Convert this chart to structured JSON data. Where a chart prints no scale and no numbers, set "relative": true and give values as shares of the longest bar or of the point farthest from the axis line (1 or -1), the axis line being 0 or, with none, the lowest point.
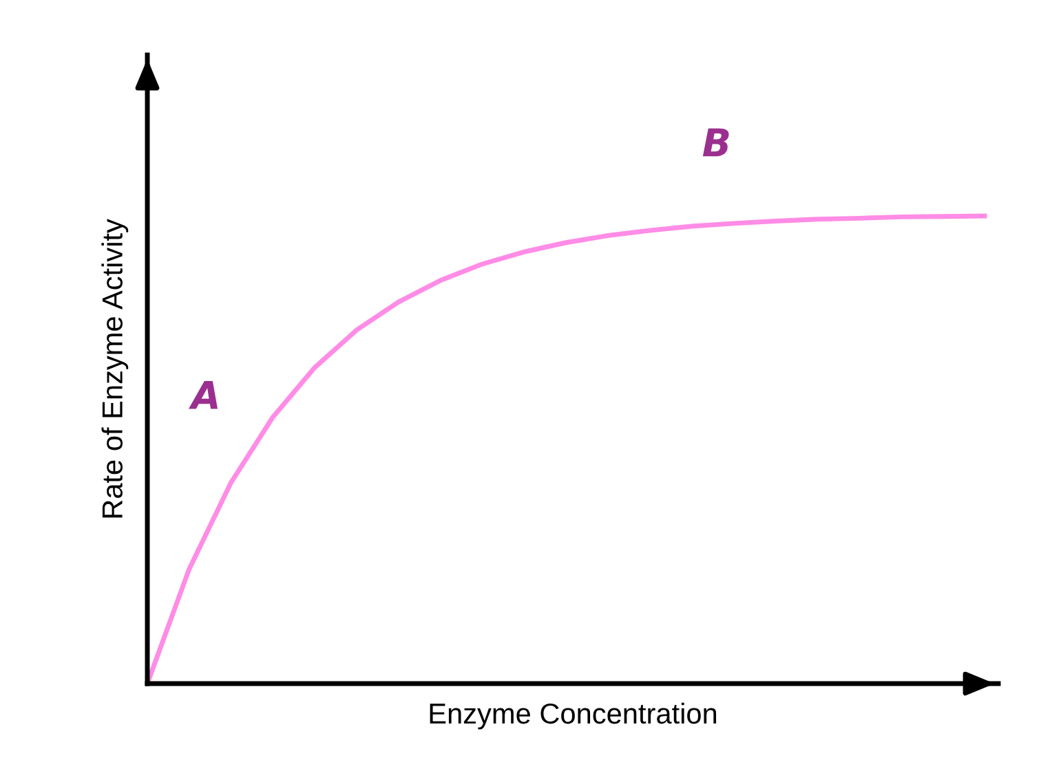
{
  "chart_data": {
    "type": "line",
    "relative": true,
    "xlabel": "Enzyme Concentration",
    "ylabel": "Rate of Enzyme Activity",
    "categories": [
      null,
      null,
      null,
      null,
      null,
      null,
      null,
      null,
      null,
      null,
      null,
      null,
      null,
      null,
      null,
      null,
      null,
      null,
      null,
      null,
      null
    ],
    "series": [
      {
        "color": "#ff8ce6",
        "values": [
          0,
          0.245,
          0.43,
          0.57,
          0.676,
          0.756,
          0.816,
          0.862,
          0.897,
          0.923,
          0.943,
          0.958,
          0.969,
          0.978,
          0.984,
          0.989,
          0.993,
          0.995,
          0.998,
          0.999,
          1
        ]
      }
    ],
    "annotations": [
      "A",
      "B"
    ],
    "legend": false,
    "marker": "none",
    "line_style": "solid"
  }
}
